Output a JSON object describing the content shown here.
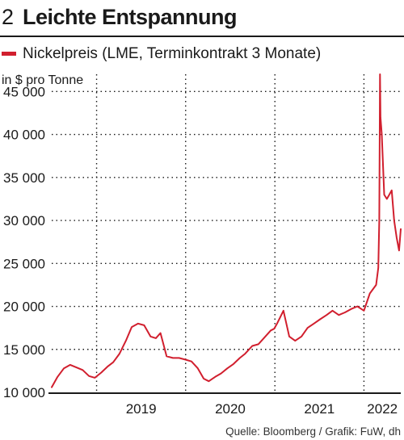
{
  "header": {
    "number": "2",
    "title": "Leichte Entspannung"
  },
  "legend": {
    "label": "Nickelpreis (LME, Terminkontrakt 3 Monate)",
    "color": "#d11f2e"
  },
  "unit_label": "in $ pro Tonne",
  "source": "Quelle: Bloomberg / Grafik: FuW, dh",
  "chart_data": {
    "type": "line",
    "title": "Leichte Entspannung",
    "ylabel": "in $ pro Tonne",
    "ylim": [
      10000,
      47000
    ],
    "yticks": [
      10000,
      15000,
      20000,
      25000,
      30000,
      35000,
      40000,
      45000
    ],
    "ytick_labels": [
      "10 000",
      "15 000",
      "20 000",
      "25 000",
      "30 000",
      "35 000",
      "40 000",
      "45 000"
    ],
    "xlim": [
      "2018-07-01",
      "2022-06-01"
    ],
    "x_year_labels": [
      "2019",
      "2020",
      "2021",
      "2022"
    ],
    "grid": true,
    "series": [
      {
        "name": "Nickelpreis (LME, Terminkontrakt 3 Monate)",
        "color": "#d11f2e",
        "x": [
          "2018-07-01",
          "2018-07-25",
          "2018-08-20",
          "2018-09-15",
          "2018-10-10",
          "2018-11-05",
          "2018-12-01",
          "2018-12-25",
          "2019-01-20",
          "2019-02-15",
          "2019-03-10",
          "2019-04-05",
          "2019-05-01",
          "2019-05-25",
          "2019-06-20",
          "2019-07-15",
          "2019-08-10",
          "2019-09-01",
          "2019-09-20",
          "2019-10-15",
          "2019-11-10",
          "2019-12-05",
          "2020-01-01",
          "2020-01-25",
          "2020-02-20",
          "2020-03-15",
          "2020-04-05",
          "2020-05-01",
          "2020-05-25",
          "2020-06-20",
          "2020-07-15",
          "2020-08-10",
          "2020-09-01",
          "2020-09-30",
          "2020-10-25",
          "2020-11-20",
          "2020-12-15",
          "2020-12-29",
          "2021-01-10",
          "2021-02-05",
          "2021-03-01",
          "2021-03-25",
          "2021-04-20",
          "2021-05-15",
          "2021-06-10",
          "2021-07-05",
          "2021-08-01",
          "2021-08-25",
          "2021-09-20",
          "2021-10-15",
          "2021-11-10",
          "2021-12-05",
          "2022-01-01",
          "2022-01-25",
          "2022-02-20",
          "2022-03-01",
          "2022-03-05",
          "2022-03-08",
          "2022-03-10",
          "2022-03-15",
          "2022-03-25",
          "2022-04-05",
          "2022-04-15",
          "2022-04-25",
          "2022-05-05",
          "2022-05-15",
          "2022-05-25",
          "2022-06-01"
        ],
        "values": [
          10600,
          11800,
          12800,
          13200,
          12900,
          12600,
          11900,
          11700,
          12300,
          13000,
          13500,
          14500,
          16000,
          17600,
          18000,
          17800,
          16500,
          16300,
          16900,
          14200,
          14000,
          14000,
          13800,
          13600,
          12800,
          11600,
          11300,
          11800,
          12200,
          12800,
          13300,
          14000,
          14500,
          15400,
          15600,
          16400,
          17200,
          17400,
          18000,
          19500,
          16500,
          16000,
          16500,
          17500,
          18000,
          18500,
          19000,
          19500,
          19000,
          19300,
          19700,
          20000,
          19500,
          21500,
          22500,
          24500,
          30000,
          47000,
          42000,
          40000,
          33000,
          32500,
          33000,
          33500,
          30000,
          28000,
          26500,
          29000
        ]
      }
    ]
  }
}
